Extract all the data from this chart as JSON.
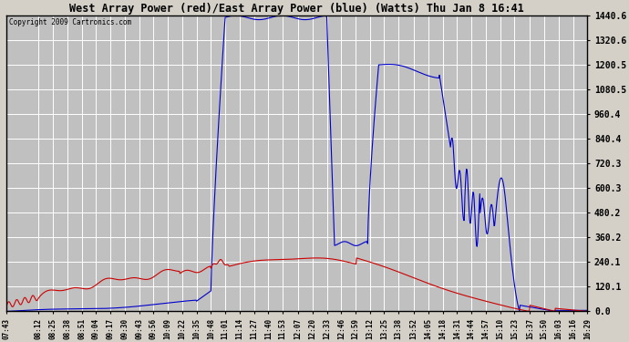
{
  "title": "West Array Power (red)/East Array Power (blue) (Watts) Thu Jan 8 16:41",
  "copyright": "Copyright 2009 Cartronics.com",
  "bg_color": "#d4d0c8",
  "plot_bg_color": "#c0c0c0",
  "grid_color": "#ffffff",
  "blue_color": "#0000cc",
  "red_color": "#cc0000",
  "ylim": [
    0.0,
    1440.6
  ],
  "yticks": [
    0.0,
    120.1,
    240.1,
    360.2,
    480.2,
    600.3,
    720.3,
    840.4,
    960.4,
    1080.5,
    1200.5,
    1320.6,
    1440.6
  ],
  "x_labels": [
    "07:43",
    "08:12",
    "08:25",
    "08:38",
    "08:51",
    "09:04",
    "09:17",
    "09:30",
    "09:43",
    "09:56",
    "10:09",
    "10:22",
    "10:35",
    "10:48",
    "11:01",
    "11:14",
    "11:27",
    "11:40",
    "11:53",
    "12:07",
    "12:20",
    "12:33",
    "12:46",
    "12:59",
    "13:12",
    "13:25",
    "13:38",
    "13:52",
    "14:05",
    "14:18",
    "14:31",
    "14:44",
    "14:57",
    "15:10",
    "15:23",
    "15:37",
    "15:50",
    "16:03",
    "16:16",
    "16:29"
  ]
}
